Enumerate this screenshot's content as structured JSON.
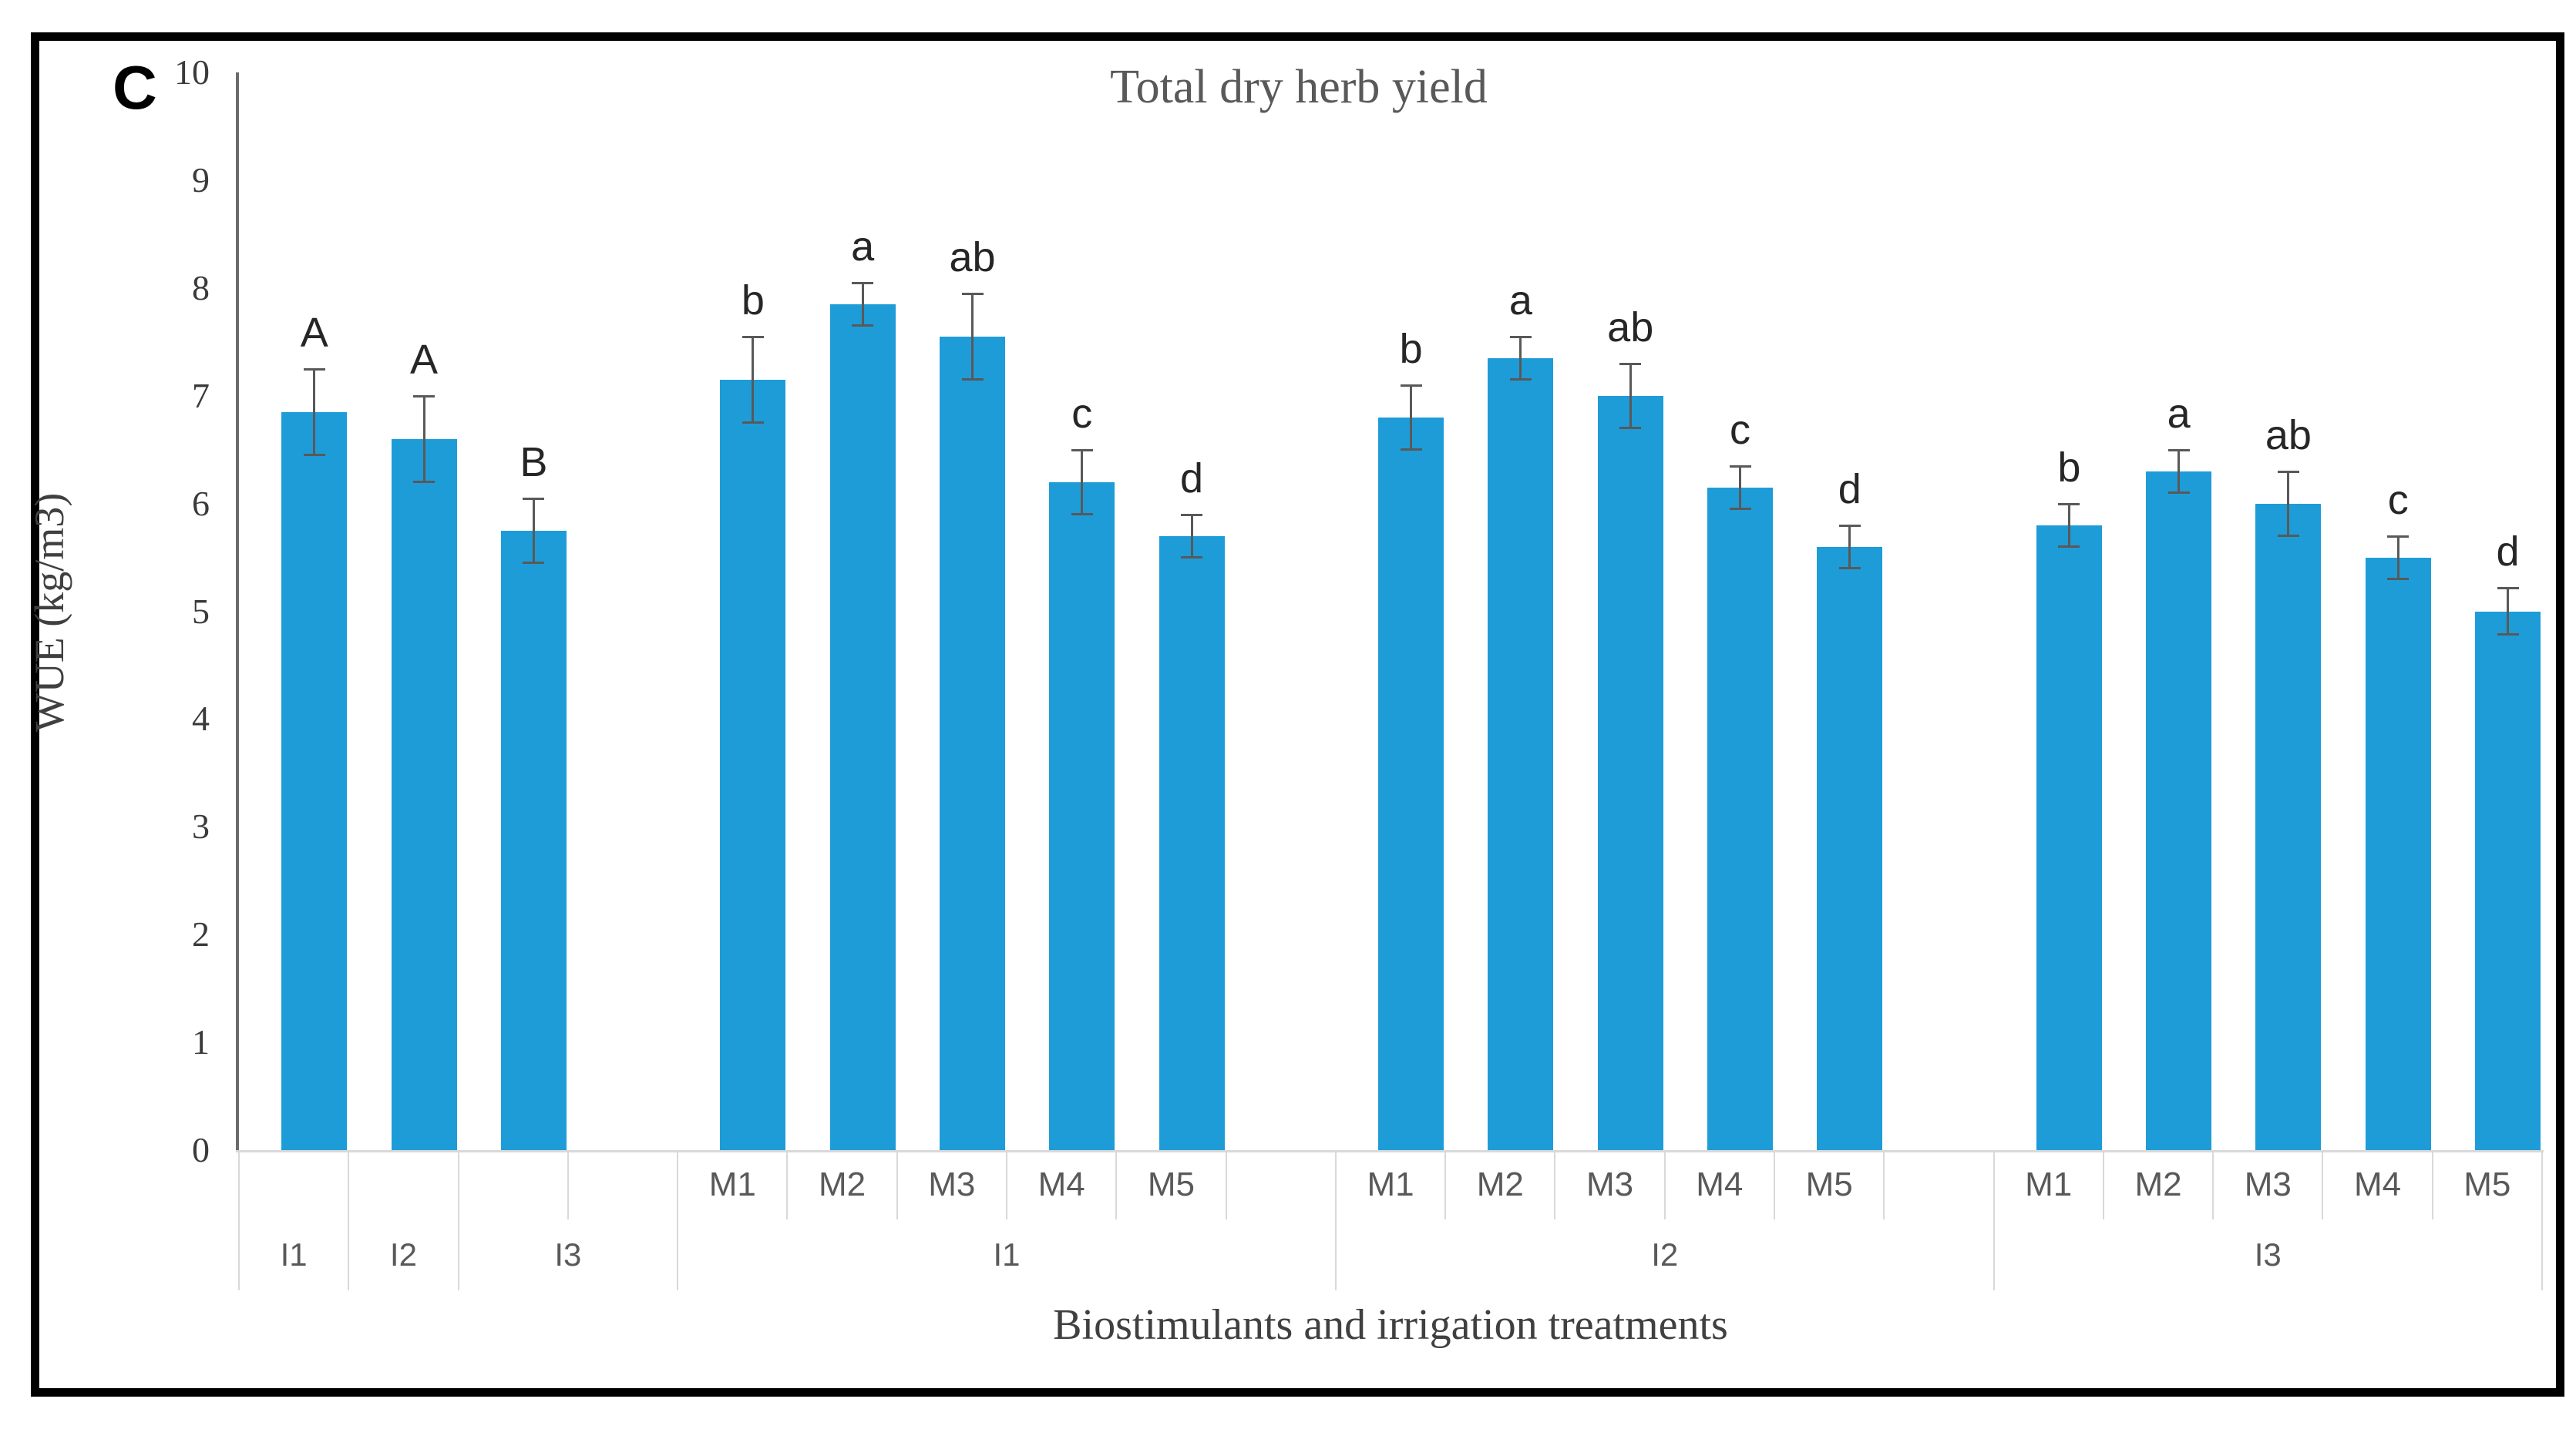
{
  "panel_label": "C",
  "chart_data": {
    "type": "bar",
    "title": "Total dry herb yield",
    "ylabel": "WUE (kg/m3)",
    "xlabel": "Biostimulants and irrigation treatments",
    "ylim": [
      0,
      10
    ],
    "yticks": [
      0,
      1,
      2,
      3,
      4,
      5,
      6,
      7,
      8,
      9,
      10
    ],
    "grid": false,
    "legend": null,
    "bar_color": "#1e9cd8",
    "error_bar_color": "#595959",
    "segments": [
      {
        "outer_label": null,
        "cells": [
          {
            "label": "I1",
            "value": 6.85,
            "error": 0.4,
            "letter": "A"
          },
          {
            "label": "I2",
            "value": 6.6,
            "error": 0.4,
            "letter": "A"
          },
          {
            "label": "I3",
            "value": 5.75,
            "error": 0.3,
            "letter": "B"
          }
        ]
      },
      {
        "outer_label": "I1",
        "cells": [
          {
            "label": "M1",
            "value": 7.15,
            "error": 0.4,
            "letter": "b"
          },
          {
            "label": "M2",
            "value": 7.85,
            "error": 0.2,
            "letter": "a"
          },
          {
            "label": "M3",
            "value": 7.55,
            "error": 0.4,
            "letter": "ab"
          },
          {
            "label": "M4",
            "value": 6.2,
            "error": 0.3,
            "letter": "c"
          },
          {
            "label": "M5",
            "value": 5.7,
            "error": 0.2,
            "letter": "d"
          }
        ]
      },
      {
        "outer_label": "I2",
        "cells": [
          {
            "label": "M1",
            "value": 6.8,
            "error": 0.3,
            "letter": "b"
          },
          {
            "label": "M2",
            "value": 7.35,
            "error": 0.2,
            "letter": "a"
          },
          {
            "label": "M3",
            "value": 7.0,
            "error": 0.3,
            "letter": "ab"
          },
          {
            "label": "M4",
            "value": 6.15,
            "error": 0.2,
            "letter": "c"
          },
          {
            "label": "M5",
            "value": 5.6,
            "error": 0.2,
            "letter": "d"
          }
        ]
      },
      {
        "outer_label": "I3",
        "cells": [
          {
            "label": "M1",
            "value": 5.8,
            "error": 0.2,
            "letter": "b"
          },
          {
            "label": "M2",
            "value": 6.3,
            "error": 0.2,
            "letter": "a"
          },
          {
            "label": "M3",
            "value": 6.0,
            "error": 0.3,
            "letter": "ab"
          },
          {
            "label": "M4",
            "value": 5.5,
            "error": 0.2,
            "letter": "c"
          },
          {
            "label": "M5",
            "value": 5.0,
            "error": 0.22,
            "letter": "d"
          }
        ]
      }
    ]
  }
}
